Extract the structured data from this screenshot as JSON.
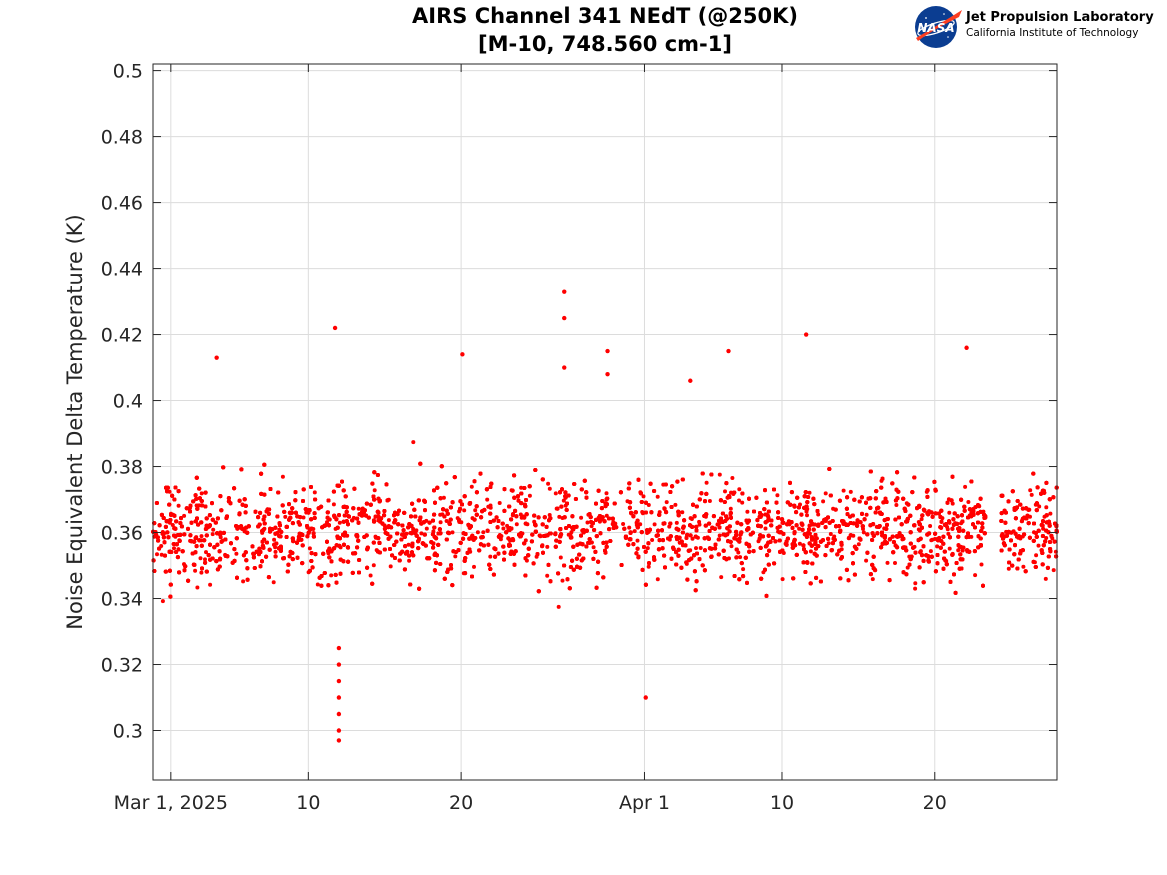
{
  "chart_data": {
    "type": "scatter",
    "title": [
      "AIRS Channel 341 NEdT (@250K)",
      "[M-10, 748.560 cm-1]"
    ],
    "xlabel": "",
    "ylabel": "Noise Equivalent Delta Temperature (K)",
    "xlim": [
      "2025-02-27T20:00",
      "2025-04-28T00:00"
    ],
    "ylim": [
      0.285,
      0.502
    ],
    "yticks": [
      0.3,
      0.32,
      0.34,
      0.36,
      0.38,
      0.4,
      0.42,
      0.44,
      0.46,
      0.48,
      0.5
    ],
    "ytick_labels": [
      "0.3",
      "0.32",
      "0.34",
      "0.36",
      "0.38",
      "0.4",
      "0.42",
      "0.44",
      "0.46",
      "0.48",
      "0.5"
    ],
    "xticks": [
      "2025-03-01",
      "2025-03-10",
      "2025-03-20",
      "2025-04-01",
      "2025-04-10",
      "2025-04-20"
    ],
    "xtick_labels": [
      "Mar 1, 2025",
      "10",
      "20",
      "Apr 1",
      "10",
      "20"
    ],
    "grid": true,
    "marker_color": "#ff0000",
    "typical_value": 0.361,
    "typical_spread": 0.015,
    "data_gaps": [
      [
        "2025-03-12T16:00",
        "2025-03-12T20:00"
      ],
      [
        "2025-03-30T04:00",
        "2025-03-30T10:00"
      ],
      [
        "2025-04-23T08:00",
        "2025-04-24T08:00"
      ]
    ],
    "notable_points": [
      {
        "x": "2025-03-12T00:00",
        "y": 0.297
      },
      {
        "x": "2025-03-12T00:00",
        "y": 0.3
      },
      {
        "x": "2025-03-12T00:00",
        "y": 0.305
      },
      {
        "x": "2025-03-12T00:00",
        "y": 0.31
      },
      {
        "x": "2025-03-12T00:00",
        "y": 0.315
      },
      {
        "x": "2025-03-12T00:00",
        "y": 0.32
      },
      {
        "x": "2025-03-12T00:00",
        "y": 0.325
      },
      {
        "x": "2025-03-11T18:00",
        "y": 0.422
      },
      {
        "x": "2025-03-26T18:00",
        "y": 0.433
      },
      {
        "x": "2025-03-26T18:00",
        "y": 0.425
      },
      {
        "x": "2025-03-26T18:00",
        "y": 0.41
      },
      {
        "x": "2025-03-29T14:00",
        "y": 0.415
      },
      {
        "x": "2025-03-29T14:00",
        "y": 0.408
      },
      {
        "x": "2025-04-01T02:00",
        "y": 0.31
      },
      {
        "x": "2025-04-11T14:00",
        "y": 0.42
      },
      {
        "x": "2025-04-22T02:00",
        "y": 0.416
      },
      {
        "x": "2025-04-04T00:00",
        "y": 0.406
      },
      {
        "x": "2025-03-20T02:00",
        "y": 0.414
      },
      {
        "x": "2025-03-04T00:00",
        "y": 0.413
      },
      {
        "x": "2025-04-06T12:00",
        "y": 0.415
      }
    ]
  },
  "logo": {
    "nasa_text": "NASA",
    "lab_name": "Jet Propulsion Laboratory",
    "institute": "California Institute of Technology"
  }
}
